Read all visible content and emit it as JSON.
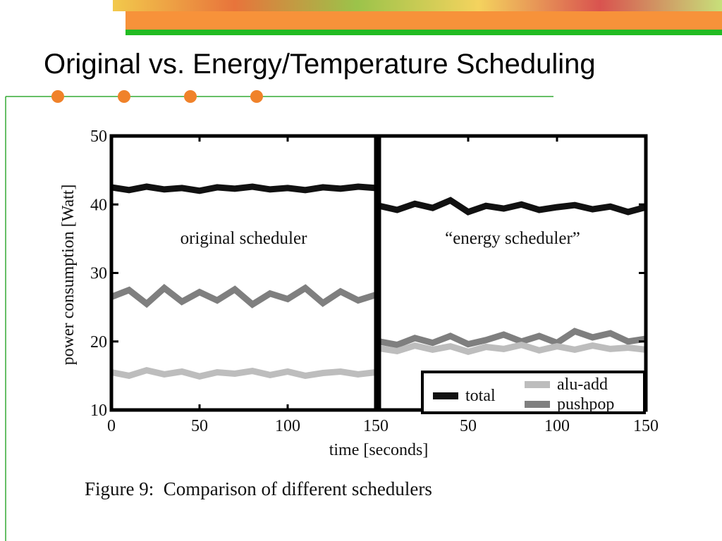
{
  "slide": {
    "title": "Original vs. Energy/Temperature Scheduling"
  },
  "chart_data": {
    "type": "line",
    "caption": "Figure 9:  Comparison of different schedulers",
    "xlabel": "time [seconds]",
    "ylabel": "power consumption [Watt]",
    "ylim": [
      10,
      50
    ],
    "yticks": [
      10,
      20,
      30,
      40,
      50
    ],
    "xlim": [
      0,
      150
    ],
    "legend": "lower right",
    "x": [
      0,
      10,
      20,
      30,
      40,
      50,
      60,
      70,
      80,
      90,
      100,
      110,
      120,
      130,
      140,
      150
    ],
    "series": [
      {
        "name": "total",
        "color": "#111111"
      },
      {
        "name": "alu-add",
        "color": "#bdbdbd"
      },
      {
        "name": "pushpop",
        "color": "#7f7f7f"
      }
    ],
    "panels": [
      {
        "annotation": "original scheduler",
        "xticks": [
          0,
          50,
          100,
          150
        ],
        "values": [
          [
            42.5,
            42.1,
            42.6,
            42.2,
            42.4,
            42.0,
            42.5,
            42.3,
            42.6,
            42.2,
            42.4,
            42.1,
            42.5,
            42.3,
            42.6,
            42.4
          ],
          [
            15.5,
            15.0,
            15.8,
            15.2,
            15.6,
            14.9,
            15.5,
            15.3,
            15.7,
            15.1,
            15.6,
            15.0,
            15.4,
            15.6,
            15.2,
            15.5
          ],
          [
            26.5,
            27.5,
            25.5,
            27.8,
            25.8,
            27.2,
            26.0,
            27.6,
            25.4,
            27.0,
            26.2,
            27.8,
            25.6,
            27.3,
            26.0,
            26.8
          ]
        ]
      },
      {
        "annotation": "“energy scheduler”",
        "xticks": [
          50,
          100,
          150
        ],
        "values": [
          [
            39.8,
            39.2,
            40.1,
            39.5,
            40.6,
            38.9,
            39.8,
            39.4,
            40.0,
            39.2,
            39.6,
            39.9,
            39.3,
            39.7,
            38.9,
            39.6
          ],
          [
            19.0,
            18.6,
            19.4,
            18.8,
            19.3,
            18.5,
            19.2,
            18.9,
            19.5,
            18.7,
            19.3,
            18.8,
            19.4,
            18.9,
            19.1,
            18.8
          ],
          [
            20.0,
            19.5,
            20.5,
            19.8,
            20.8,
            19.6,
            20.2,
            21.0,
            20.0,
            20.8,
            19.8,
            21.5,
            20.6,
            21.2,
            20.0,
            20.4
          ]
        ]
      }
    ]
  }
}
